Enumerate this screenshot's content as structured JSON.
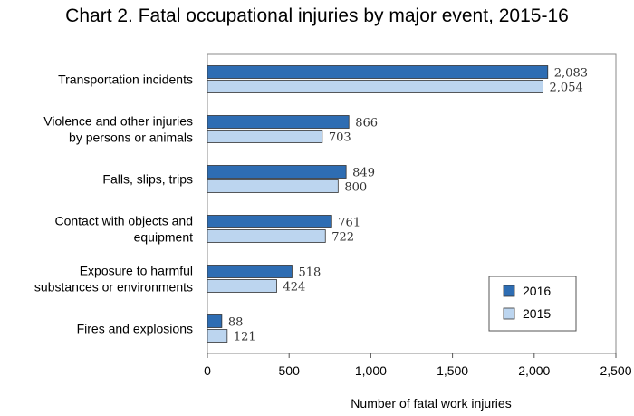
{
  "title": "Chart 2. Fatal occupational injuries by major event, 2015-16",
  "colors": {
    "s2016": "#2e6db3",
    "s2015": "#bcd5ef",
    "stroke": "#333333"
  },
  "chart_data": {
    "type": "bar",
    "orientation": "horizontal",
    "title": "Chart 2. Fatal occupational injuries by major event, 2015-16",
    "xlabel": "Number of fatal work injuries",
    "ylabel": "",
    "xlim": [
      0,
      2500
    ],
    "xticks": [
      0,
      500,
      1000,
      1500,
      2000,
      2500
    ],
    "xtick_labels": [
      "0",
      "500",
      "1,000",
      "1,500",
      "2,000",
      "2,500"
    ],
    "grid": false,
    "legend_position": "bottom-right",
    "categories": [
      [
        "Transportation incidents"
      ],
      [
        "Violence and other injuries",
        "by persons or animals"
      ],
      [
        "Falls, slips, trips"
      ],
      [
        "Contact with objects and",
        "equipment"
      ],
      [
        "Exposure to harmful",
        "substances or environments"
      ],
      [
        "Fires and explosions"
      ]
    ],
    "series": [
      {
        "name": "2016",
        "values": [
          2083,
          866,
          849,
          761,
          518,
          88
        ],
        "labels": [
          "2,083",
          "866",
          "849",
          "761",
          "518",
          "88"
        ]
      },
      {
        "name": "2015",
        "values": [
          2054,
          703,
          800,
          722,
          424,
          121
        ],
        "labels": [
          "2,054",
          "703",
          "800",
          "722",
          "424",
          "121"
        ]
      }
    ]
  }
}
